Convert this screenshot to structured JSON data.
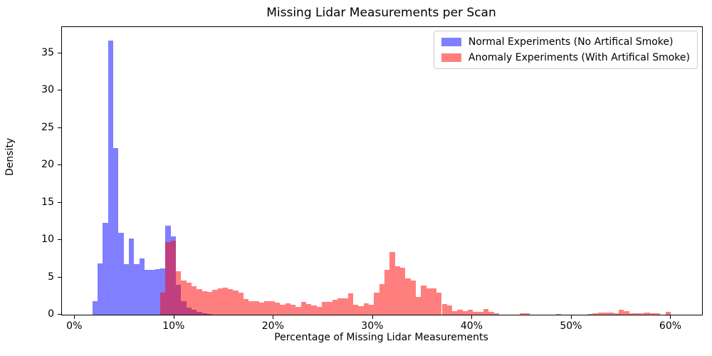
{
  "title": "Missing Lidar Measurements per Scan",
  "axes": {
    "xlabel": "Percentage of Missing Lidar Measurements",
    "ylabel": "Density",
    "x_ticks": [
      {
        "value": 0,
        "label": "0%"
      },
      {
        "value": 10,
        "label": "10%"
      },
      {
        "value": 20,
        "label": "20%"
      },
      {
        "value": 30,
        "label": "30%"
      },
      {
        "value": 40,
        "label": "40%"
      },
      {
        "value": 50,
        "label": "50%"
      },
      {
        "value": 60,
        "label": "60%"
      }
    ],
    "y_ticks": [
      {
        "value": 0,
        "label": "0"
      },
      {
        "value": 5,
        "label": "5"
      },
      {
        "value": 10,
        "label": "10"
      },
      {
        "value": 15,
        "label": "15"
      },
      {
        "value": 20,
        "label": "20"
      },
      {
        "value": 25,
        "label": "25"
      },
      {
        "value": 30,
        "label": "30"
      },
      {
        "value": 35,
        "label": "35"
      }
    ]
  },
  "legend": [
    {
      "label": "Normal Experiments (No Artifical Smoke)",
      "color": "rgba(0,0,255,0.5)"
    },
    {
      "label": "Anomaly Experiments (With Artifical Smoke)",
      "color": "rgba(255,0,0,0.5)"
    }
  ],
  "chart_data": {
    "type": "bar",
    "subtype": "overlaid-density-histograms",
    "title": "Missing Lidar Measurements per Scan",
    "xlabel": "Percentage of Missing Lidar Measurements",
    "ylabel": "Density",
    "xlim": [
      -1.31,
      63.12
    ],
    "ylim": [
      0,
      38.5
    ],
    "grid": false,
    "legend_position": "upper right",
    "bin_width_pct": 0.525,
    "series": [
      {
        "name": "Normal Experiments (No Artifical Smoke)",
        "fill": "rgba(0,0,255,0.5)",
        "bins": [
          [
            1.75,
            1.8
          ],
          [
            2.275,
            6.9
          ],
          [
            2.8,
            12.3
          ],
          [
            3.325,
            36.7
          ],
          [
            3.85,
            22.3
          ],
          [
            4.375,
            11.0
          ],
          [
            4.9,
            6.8
          ],
          [
            5.425,
            10.2
          ],
          [
            5.95,
            6.8
          ],
          [
            6.475,
            7.5
          ],
          [
            7.0,
            6.0
          ],
          [
            7.525,
            6.0
          ],
          [
            8.05,
            6.1
          ],
          [
            8.575,
            6.2
          ],
          [
            9.1,
            11.9
          ],
          [
            9.625,
            10.5
          ],
          [
            10.15,
            4.0
          ],
          [
            10.675,
            1.8
          ],
          [
            11.2,
            1.0
          ],
          [
            11.725,
            0.7
          ],
          [
            12.25,
            0.35
          ],
          [
            12.775,
            0.2
          ],
          [
            13.3,
            0.12
          ]
        ]
      },
      {
        "name": "Anomaly Experiments (With Artifical Smoke)",
        "fill": "rgba(255,0,0,0.5)",
        "bins": [
          [
            8.575,
            3.0
          ],
          [
            9.1,
            9.7
          ],
          [
            9.625,
            9.9
          ],
          [
            10.15,
            5.8
          ],
          [
            10.675,
            4.6
          ],
          [
            11.2,
            4.3
          ],
          [
            11.725,
            3.85
          ],
          [
            12.25,
            3.4
          ],
          [
            12.775,
            3.15
          ],
          [
            13.3,
            3.05
          ],
          [
            13.825,
            3.3
          ],
          [
            14.35,
            3.5
          ],
          [
            14.875,
            3.65
          ],
          [
            15.4,
            3.45
          ],
          [
            15.925,
            3.2
          ],
          [
            16.45,
            2.95
          ],
          [
            16.975,
            2.1
          ],
          [
            17.5,
            1.85
          ],
          [
            18.025,
            1.85
          ],
          [
            18.55,
            1.6
          ],
          [
            19.075,
            1.85
          ],
          [
            19.6,
            1.85
          ],
          [
            20.125,
            1.65
          ],
          [
            20.65,
            1.35
          ],
          [
            21.175,
            1.5
          ],
          [
            21.7,
            1.3
          ],
          [
            22.225,
            1.05
          ],
          [
            22.75,
            1.75
          ],
          [
            23.275,
            1.4
          ],
          [
            23.8,
            1.2
          ],
          [
            24.325,
            1.05
          ],
          [
            24.85,
            1.7
          ],
          [
            25.375,
            1.7
          ],
          [
            25.9,
            2.0
          ],
          [
            26.425,
            2.2
          ],
          [
            26.95,
            2.2
          ],
          [
            27.475,
            2.9
          ],
          [
            28.0,
            1.3
          ],
          [
            28.525,
            1.1
          ],
          [
            29.05,
            1.5
          ],
          [
            29.575,
            1.3
          ],
          [
            30.1,
            3.0
          ],
          [
            30.625,
            4.1
          ],
          [
            31.15,
            6.0
          ],
          [
            31.675,
            8.35
          ],
          [
            32.2,
            6.5
          ],
          [
            32.725,
            6.3
          ],
          [
            33.25,
            4.9
          ],
          [
            33.775,
            4.6
          ],
          [
            34.3,
            2.4
          ],
          [
            34.825,
            3.9
          ],
          [
            35.35,
            3.5
          ],
          [
            35.875,
            3.5
          ],
          [
            36.4,
            3.0
          ],
          [
            36.925,
            1.45
          ],
          [
            37.45,
            1.2
          ],
          [
            37.975,
            0.5
          ],
          [
            38.5,
            0.7
          ],
          [
            39.025,
            0.5
          ],
          [
            39.55,
            0.65
          ],
          [
            40.075,
            0.35
          ],
          [
            40.6,
            0.4
          ],
          [
            41.125,
            0.75
          ],
          [
            41.65,
            0.35
          ],
          [
            42.175,
            0.15
          ],
          [
            44.75,
            0.15
          ],
          [
            45.275,
            0.15
          ],
          [
            48.425,
            0.13
          ],
          [
            51.575,
            0.13
          ],
          [
            52.1,
            0.22
          ],
          [
            52.625,
            0.3
          ],
          [
            53.15,
            0.3
          ],
          [
            53.675,
            0.3
          ],
          [
            54.2,
            0.15
          ],
          [
            54.725,
            0.65
          ],
          [
            55.25,
            0.5
          ],
          [
            55.775,
            0.15
          ],
          [
            56.3,
            0.22
          ],
          [
            56.825,
            0.22
          ],
          [
            57.35,
            0.3
          ],
          [
            57.875,
            0.22
          ],
          [
            58.4,
            0.15
          ],
          [
            59.45,
            0.35
          ]
        ]
      }
    ]
  }
}
